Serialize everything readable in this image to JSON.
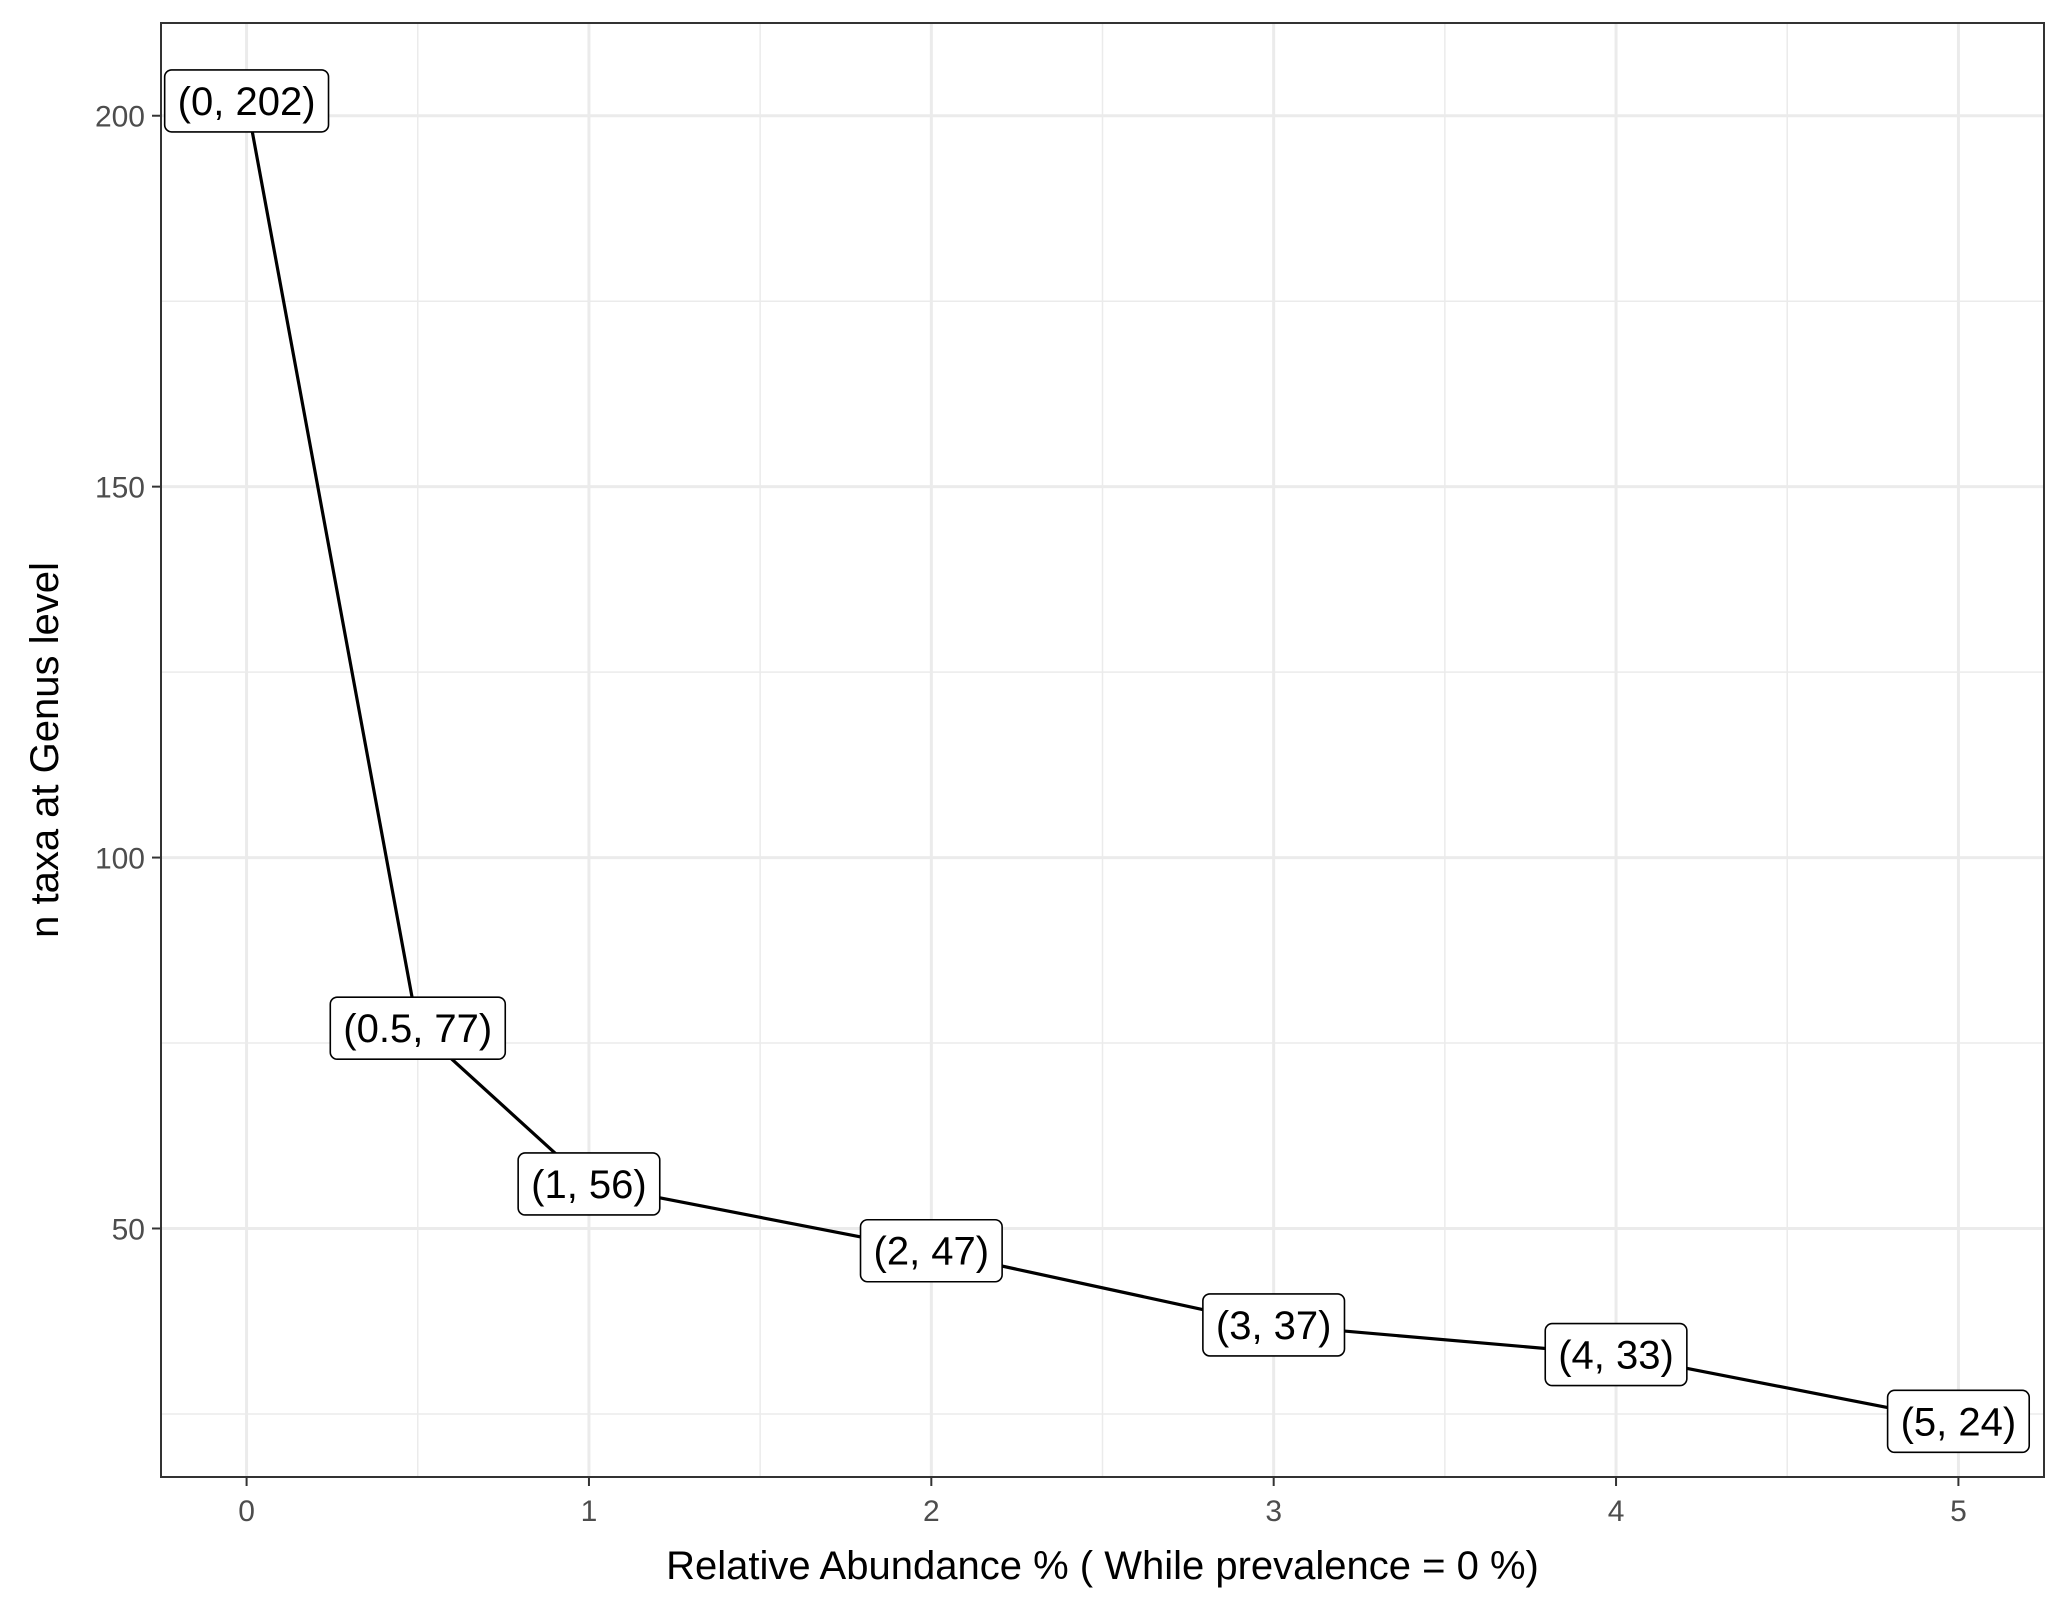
{
  "chart_data": {
    "type": "line",
    "title": "",
    "xlabel": "Relative Abundance % ( While prevalence = 0 %)",
    "ylabel": "n taxa at Genus level",
    "xlim": [
      -0.25,
      5.25
    ],
    "ylim": [
      16.5,
      212.5
    ],
    "x_ticks": [
      0,
      1,
      2,
      3,
      4,
      5
    ],
    "x_tick_labels": [
      "0",
      "1",
      "2",
      "3",
      "4",
      "5"
    ],
    "x_minor_grid": [
      0.5,
      1.5,
      2.5,
      3.5,
      4.5
    ],
    "y_ticks": [
      50,
      100,
      150,
      200
    ],
    "y_tick_labels": [
      "50",
      "100",
      "150",
      "200"
    ],
    "y_minor_grid": [
      25,
      75,
      125,
      175
    ],
    "grid": true,
    "legend": "none",
    "series": [
      {
        "x": [
          0,
          0.5,
          1,
          2,
          3,
          4,
          5
        ],
        "values": [
          202,
          77,
          56,
          47,
          37,
          33,
          24
        ],
        "labels": [
          "(0, 202)",
          "(0.5, 77)",
          "(1, 56)",
          "(2, 47)",
          "(3, 37)",
          "(4, 33)",
          "(5, 24)"
        ],
        "color": "#000000"
      }
    ],
    "colors": {
      "panel_border": "#333333",
      "grid": "#ebebeb",
      "line": "#000000",
      "tick_text": "#4d4d4d"
    }
  }
}
